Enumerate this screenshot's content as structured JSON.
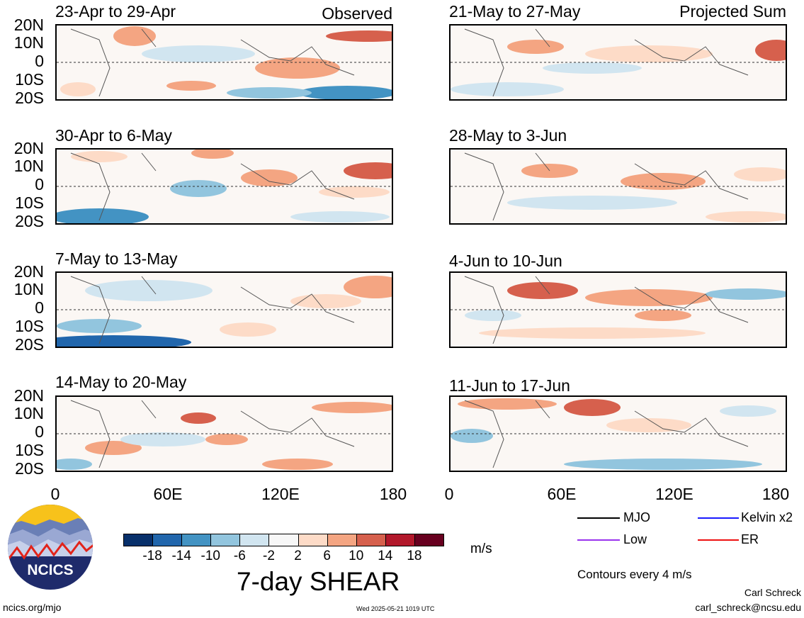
{
  "panels_left": [
    {
      "title": "23-Apr to 29-Apr"
    },
    {
      "title": "30-Apr to 6-May"
    },
    {
      "title": "7-May to 13-May"
    },
    {
      "title": "14-May to 20-May"
    }
  ],
  "panels_right": [
    {
      "title": "21-May to 27-May"
    },
    {
      "title": "28-May to 3-Jun"
    },
    {
      "title": "4-Jun to 10-Jun"
    },
    {
      "title": "11-Jun to 17-Jun"
    }
  ],
  "column_labels": {
    "left": "Observed",
    "right": "Projected Sum"
  },
  "lat_labels": [
    "20N",
    "10N",
    "0",
    "10S",
    "20S"
  ],
  "lon_labels": [
    "0",
    "60E",
    "120E",
    "180"
  ],
  "colorbar": {
    "colors": [
      "#08306b",
      "#2166ac",
      "#4393c3",
      "#92c5de",
      "#d1e5f0",
      "#f7f7f7",
      "#fddbc7",
      "#f4a582",
      "#d6604d",
      "#b2182b",
      "#67001f"
    ],
    "labels": [
      "-18",
      "-14",
      "-10",
      "-6",
      "-2",
      "2",
      "6",
      "10",
      "14",
      "18"
    ],
    "units": "m/s",
    "title": "7-day SHEAR"
  },
  "legend": [
    {
      "label": "MJO",
      "color": "#000000"
    },
    {
      "label": "Kelvin x2",
      "color": "#1a1aff"
    },
    {
      "label": "Low",
      "color": "#9933ee"
    },
    {
      "label": "ER",
      "color": "#ee1111"
    }
  ],
  "contours_note": "Contours every 4 m/s",
  "logo": {
    "text": "NCICS"
  },
  "footer": {
    "site": "ncics.org/mjo",
    "timestamp": "Wed 2025-05-21 1019 UTC",
    "author": "Carl Schreck",
    "email": "carl_schreck@ncsu.edu"
  }
}
